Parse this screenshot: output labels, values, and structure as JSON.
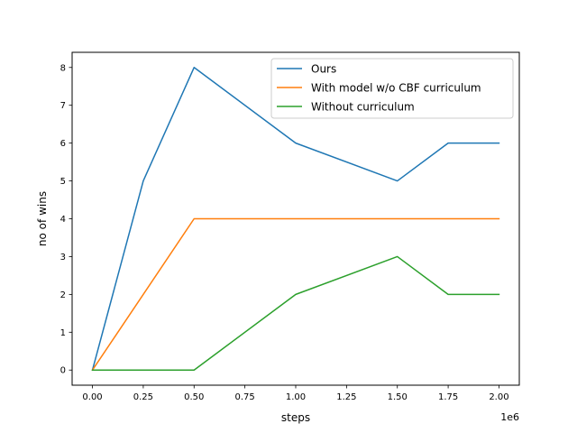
{
  "chart_data": {
    "type": "line",
    "xlabel": "steps",
    "ylabel": "no of wins",
    "x_offset_label": "1e6",
    "xlim": [
      -0.1,
      2.1
    ],
    "ylim": [
      -0.4,
      8.4
    ],
    "x_ticks": [
      "0.00",
      "0.25",
      "0.50",
      "0.75",
      "1.00",
      "1.25",
      "1.50",
      "1.75",
      "2.00"
    ],
    "y_ticks": [
      "0",
      "1",
      "2",
      "3",
      "4",
      "5",
      "6",
      "7",
      "8"
    ],
    "grid": false,
    "legend_position": "top-right",
    "series": [
      {
        "name": "Ours",
        "color": "#1f77b4",
        "x": [
          0,
          0.25,
          0.5,
          1.0,
          1.5,
          1.75,
          2.0
        ],
        "y": [
          0,
          5,
          8,
          6,
          5,
          6,
          6
        ]
      },
      {
        "name": "With model w/o CBF curriculum",
        "color": "#ff7f0e",
        "x": [
          0,
          0.5,
          1.0,
          1.5,
          1.75,
          2.0
        ],
        "y": [
          0,
          4,
          4,
          4,
          4,
          4
        ]
      },
      {
        "name": "Without curriculum",
        "color": "#2ca02c",
        "x": [
          0,
          0.5,
          1.0,
          1.5,
          1.75,
          2.0
        ],
        "y": [
          0,
          0,
          2,
          3,
          2,
          2
        ]
      }
    ]
  }
}
